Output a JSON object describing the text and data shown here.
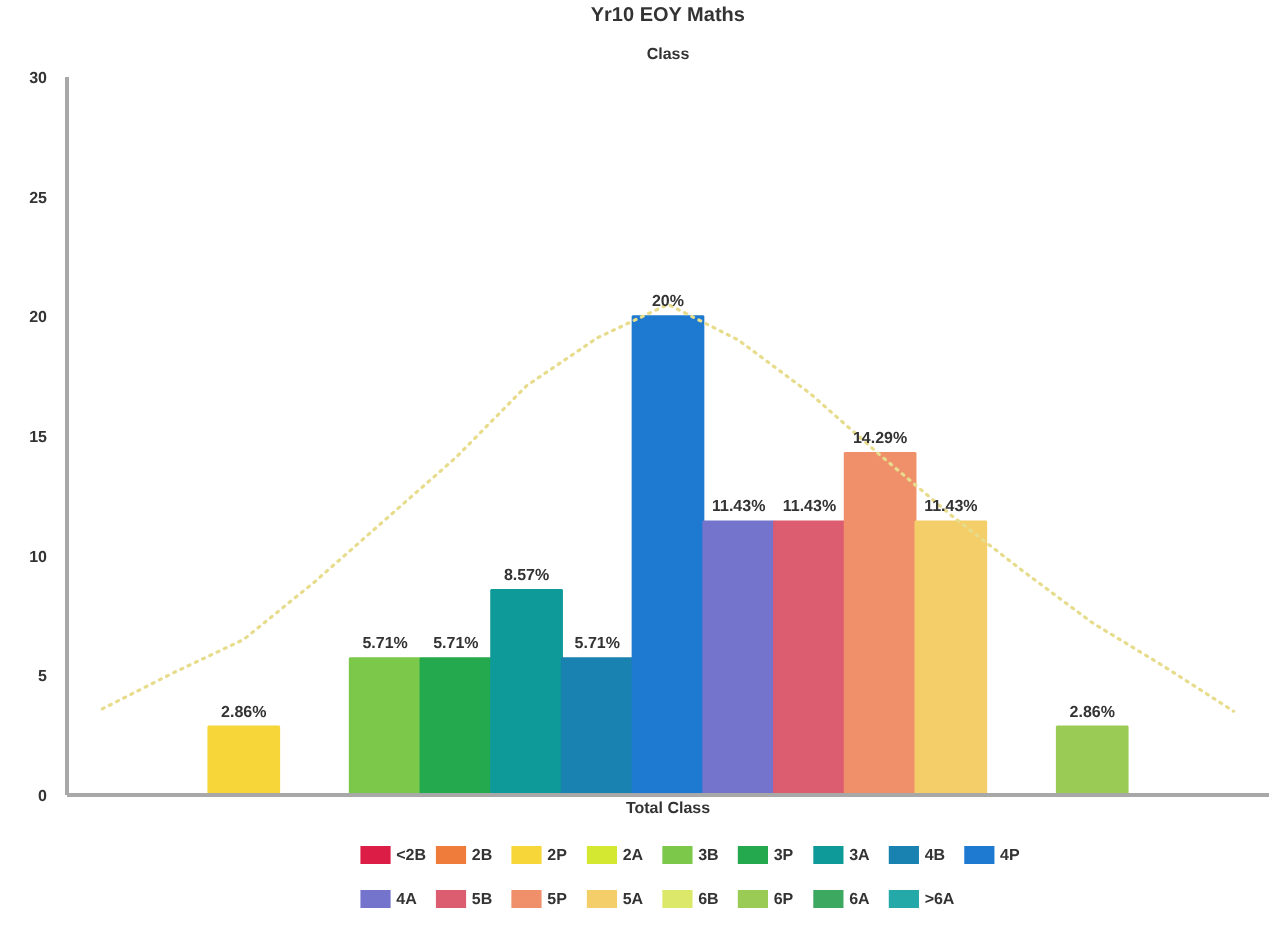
{
  "chart_data": {
    "type": "bar",
    "title": "Yr10 EOY Maths",
    "subtitle": "Class",
    "xlabel": "Total Class",
    "stacked": true,
    "categories": [
      null,
      null,
      null,
      null,
      null,
      null,
      null,
      null,
      null,
      null,
      null,
      null,
      null,
      null,
      null,
      null,
      null
    ],
    "series": [
      {
        "name": "<2B",
        "color": "#dc1e46",
        "values": [
          0,
          null,
          null,
          null,
          null,
          null,
          null,
          null,
          null,
          null,
          null,
          null,
          null,
          null,
          null,
          null,
          null
        ]
      },
      {
        "name": "2B",
        "color": "#f07c3c",
        "values": [
          null,
          0,
          null,
          null,
          null,
          null,
          null,
          null,
          null,
          null,
          null,
          null,
          null,
          null,
          null,
          null,
          null
        ]
      },
      {
        "name": "2P",
        "color": "#f7d63a",
        "values": [
          null,
          null,
          2.86,
          null,
          null,
          null,
          null,
          null,
          null,
          null,
          null,
          null,
          null,
          null,
          null,
          null,
          null
        ],
        "value_labels": [
          null,
          null,
          "2.86%",
          null,
          null,
          null,
          null,
          null,
          null,
          null,
          null,
          null,
          null,
          null,
          null,
          null,
          null
        ]
      },
      {
        "name": "2A",
        "color": "#d4e832",
        "values": [
          null,
          null,
          null,
          0,
          null,
          null,
          null,
          null,
          null,
          null,
          null,
          null,
          null,
          null,
          null,
          null,
          null
        ]
      },
      {
        "name": "3B",
        "color": "#7cc84a",
        "values": [
          null,
          null,
          null,
          null,
          5.71,
          null,
          null,
          null,
          null,
          null,
          null,
          null,
          null,
          null,
          null,
          null,
          null
        ],
        "value_labels": [
          null,
          null,
          null,
          null,
          "5.71%",
          null,
          null,
          null,
          null,
          null,
          null,
          null,
          null,
          null,
          null,
          null,
          null
        ]
      },
      {
        "name": "3P",
        "color": "#24a94e",
        "values": [
          null,
          null,
          null,
          null,
          null,
          5.71,
          null,
          null,
          null,
          null,
          null,
          null,
          null,
          null,
          null,
          null,
          null
        ],
        "value_labels": [
          null,
          null,
          null,
          null,
          null,
          "5.71%",
          null,
          null,
          null,
          null,
          null,
          null,
          null,
          null,
          null,
          null,
          null
        ]
      },
      {
        "name": "3A",
        "color": "#0f9a9a",
        "values": [
          null,
          null,
          null,
          null,
          null,
          null,
          8.57,
          null,
          null,
          null,
          null,
          null,
          null,
          null,
          null,
          null,
          null
        ],
        "value_labels": [
          null,
          null,
          null,
          null,
          null,
          null,
          "8.57%",
          null,
          null,
          null,
          null,
          null,
          null,
          null,
          null,
          null,
          null
        ]
      },
      {
        "name": "4B",
        "color": "#1a82b0",
        "values": [
          null,
          null,
          null,
          null,
          null,
          null,
          null,
          5.71,
          null,
          null,
          null,
          null,
          null,
          null,
          null,
          null,
          null
        ],
        "value_labels": [
          null,
          null,
          null,
          null,
          null,
          null,
          null,
          "5.71%",
          null,
          null,
          null,
          null,
          null,
          null,
          null,
          null,
          null
        ]
      },
      {
        "name": "4P",
        "color": "#1e7ad0",
        "values": [
          null,
          null,
          null,
          null,
          null,
          null,
          null,
          null,
          20,
          null,
          null,
          null,
          null,
          null,
          null,
          null,
          null
        ],
        "value_labels": [
          null,
          null,
          null,
          null,
          null,
          null,
          null,
          null,
          "20%",
          null,
          null,
          null,
          null,
          null,
          null,
          null,
          null
        ]
      },
      {
        "name": "4A",
        "color": "#7474cc",
        "values": [
          null,
          null,
          null,
          null,
          null,
          null,
          null,
          null,
          null,
          11.43,
          null,
          null,
          null,
          null,
          null,
          null,
          null
        ],
        "value_labels": [
          null,
          null,
          null,
          null,
          null,
          null,
          null,
          null,
          null,
          "11.43%",
          null,
          null,
          null,
          null,
          null,
          null,
          null
        ]
      },
      {
        "name": "5B",
        "color": "#dc5c70",
        "values": [
          null,
          null,
          null,
          null,
          null,
          null,
          null,
          null,
          null,
          null,
          11.43,
          null,
          null,
          null,
          null,
          null,
          null
        ],
        "value_labels": [
          null,
          null,
          null,
          null,
          null,
          null,
          null,
          null,
          null,
          null,
          "11.43%",
          null,
          null,
          null,
          null,
          null,
          null
        ]
      },
      {
        "name": "5P",
        "color": "#f0906a",
        "values": [
          null,
          null,
          null,
          null,
          null,
          null,
          null,
          null,
          null,
          null,
          null,
          14.29,
          null,
          null,
          null,
          null,
          null
        ],
        "value_labels": [
          null,
          null,
          null,
          null,
          null,
          null,
          null,
          null,
          null,
          null,
          null,
          "14.29%",
          null,
          null,
          null,
          null,
          null
        ]
      },
      {
        "name": "5A",
        "color": "#f4ce68",
        "values": [
          null,
          null,
          null,
          null,
          null,
          null,
          null,
          null,
          null,
          null,
          null,
          null,
          11.43,
          null,
          null,
          null,
          null
        ],
        "value_labels": [
          null,
          null,
          null,
          null,
          null,
          null,
          null,
          null,
          null,
          null,
          null,
          null,
          "11.43%",
          null,
          null,
          null,
          null
        ]
      },
      {
        "name": "6B",
        "color": "#dce86a",
        "values": [
          null,
          null,
          null,
          null,
          null,
          null,
          null,
          null,
          null,
          null,
          null,
          null,
          null,
          0,
          null,
          null,
          null
        ]
      },
      {
        "name": "6P",
        "color": "#9acc55",
        "values": [
          null,
          null,
          null,
          null,
          null,
          null,
          null,
          null,
          null,
          null,
          null,
          null,
          null,
          null,
          2.86,
          null,
          null
        ],
        "value_labels": [
          null,
          null,
          null,
          null,
          null,
          null,
          null,
          null,
          null,
          null,
          null,
          null,
          null,
          null,
          "2.86%",
          null,
          null
        ]
      },
      {
        "name": "6A",
        "color": "#3ca860",
        "values": [
          null,
          null,
          null,
          null,
          null,
          null,
          null,
          null,
          null,
          null,
          null,
          null,
          null,
          null,
          null,
          0,
          null
        ]
      },
      {
        "name": ">6A",
        "color": "#25a8a8",
        "values": [
          null,
          null,
          null,
          null,
          null,
          null,
          null,
          null,
          null,
          null,
          null,
          null,
          null,
          null,
          null,
          null,
          0
        ]
      },
      {
        "type": "line",
        "color": "#e6dc8c",
        "line_style": "dotted",
        "values": [
          3.6,
          5.1,
          6.5,
          8.9,
          11.5,
          14.1,
          17.1,
          19.1,
          20.5,
          19.0,
          16.8,
          14.2,
          11.7,
          9.4,
          7.2,
          5.4,
          3.5
        ]
      }
    ],
    "ylim": [
      0,
      30
    ],
    "yticks": [
      0,
      5,
      10,
      15,
      20,
      25,
      30
    ],
    "tick_labels": "y",
    "grid": false,
    "legend": "bottom"
  }
}
